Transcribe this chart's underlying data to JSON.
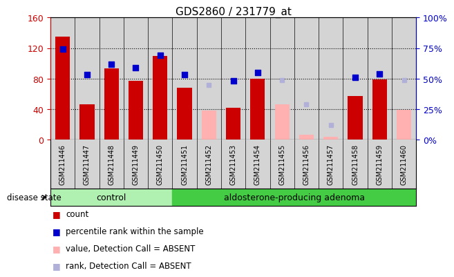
{
  "title": "GDS2860 / 231779_at",
  "samples": [
    "GSM211446",
    "GSM211447",
    "GSM211448",
    "GSM211449",
    "GSM211450",
    "GSM211451",
    "GSM211452",
    "GSM211453",
    "GSM211454",
    "GSM211455",
    "GSM211456",
    "GSM211457",
    "GSM211458",
    "GSM211459",
    "GSM211460"
  ],
  "count_values": [
    135,
    46,
    93,
    77,
    110,
    68,
    null,
    42,
    80,
    null,
    null,
    null,
    57,
    79,
    null
  ],
  "count_absent": [
    null,
    null,
    null,
    null,
    null,
    null,
    38,
    null,
    null,
    46,
    6,
    4,
    null,
    null,
    39
  ],
  "percentile_values": [
    74,
    53,
    62,
    59,
    69,
    53,
    null,
    48,
    55,
    null,
    null,
    null,
    51,
    54,
    null
  ],
  "percentile_absent": [
    null,
    null,
    null,
    null,
    null,
    null,
    45,
    null,
    null,
    49,
    29,
    12,
    null,
    null,
    49
  ],
  "ylim_left": [
    0,
    160
  ],
  "ylim_right": [
    0,
    100
  ],
  "yticks_left": [
    0,
    40,
    80,
    120,
    160
  ],
  "ytick_labels_left": [
    "0",
    "40",
    "80",
    "120",
    "160"
  ],
  "yticks_right": [
    0,
    25,
    50,
    75,
    100
  ],
  "ytick_labels_right": [
    "0%",
    "25%",
    "50%",
    "75%",
    "100%"
  ],
  "bar_color": "#cc0000",
  "bar_absent_color": "#ffb0b0",
  "dot_color": "#0000cc",
  "dot_absent_color": "#b0b0d8",
  "plot_bg_color": "#d4d4d4",
  "control_color": "#b0f0b0",
  "adenoma_color": "#44cc44",
  "grid_color": "#000000",
  "control_samples": 5,
  "adenoma_samples": 10
}
